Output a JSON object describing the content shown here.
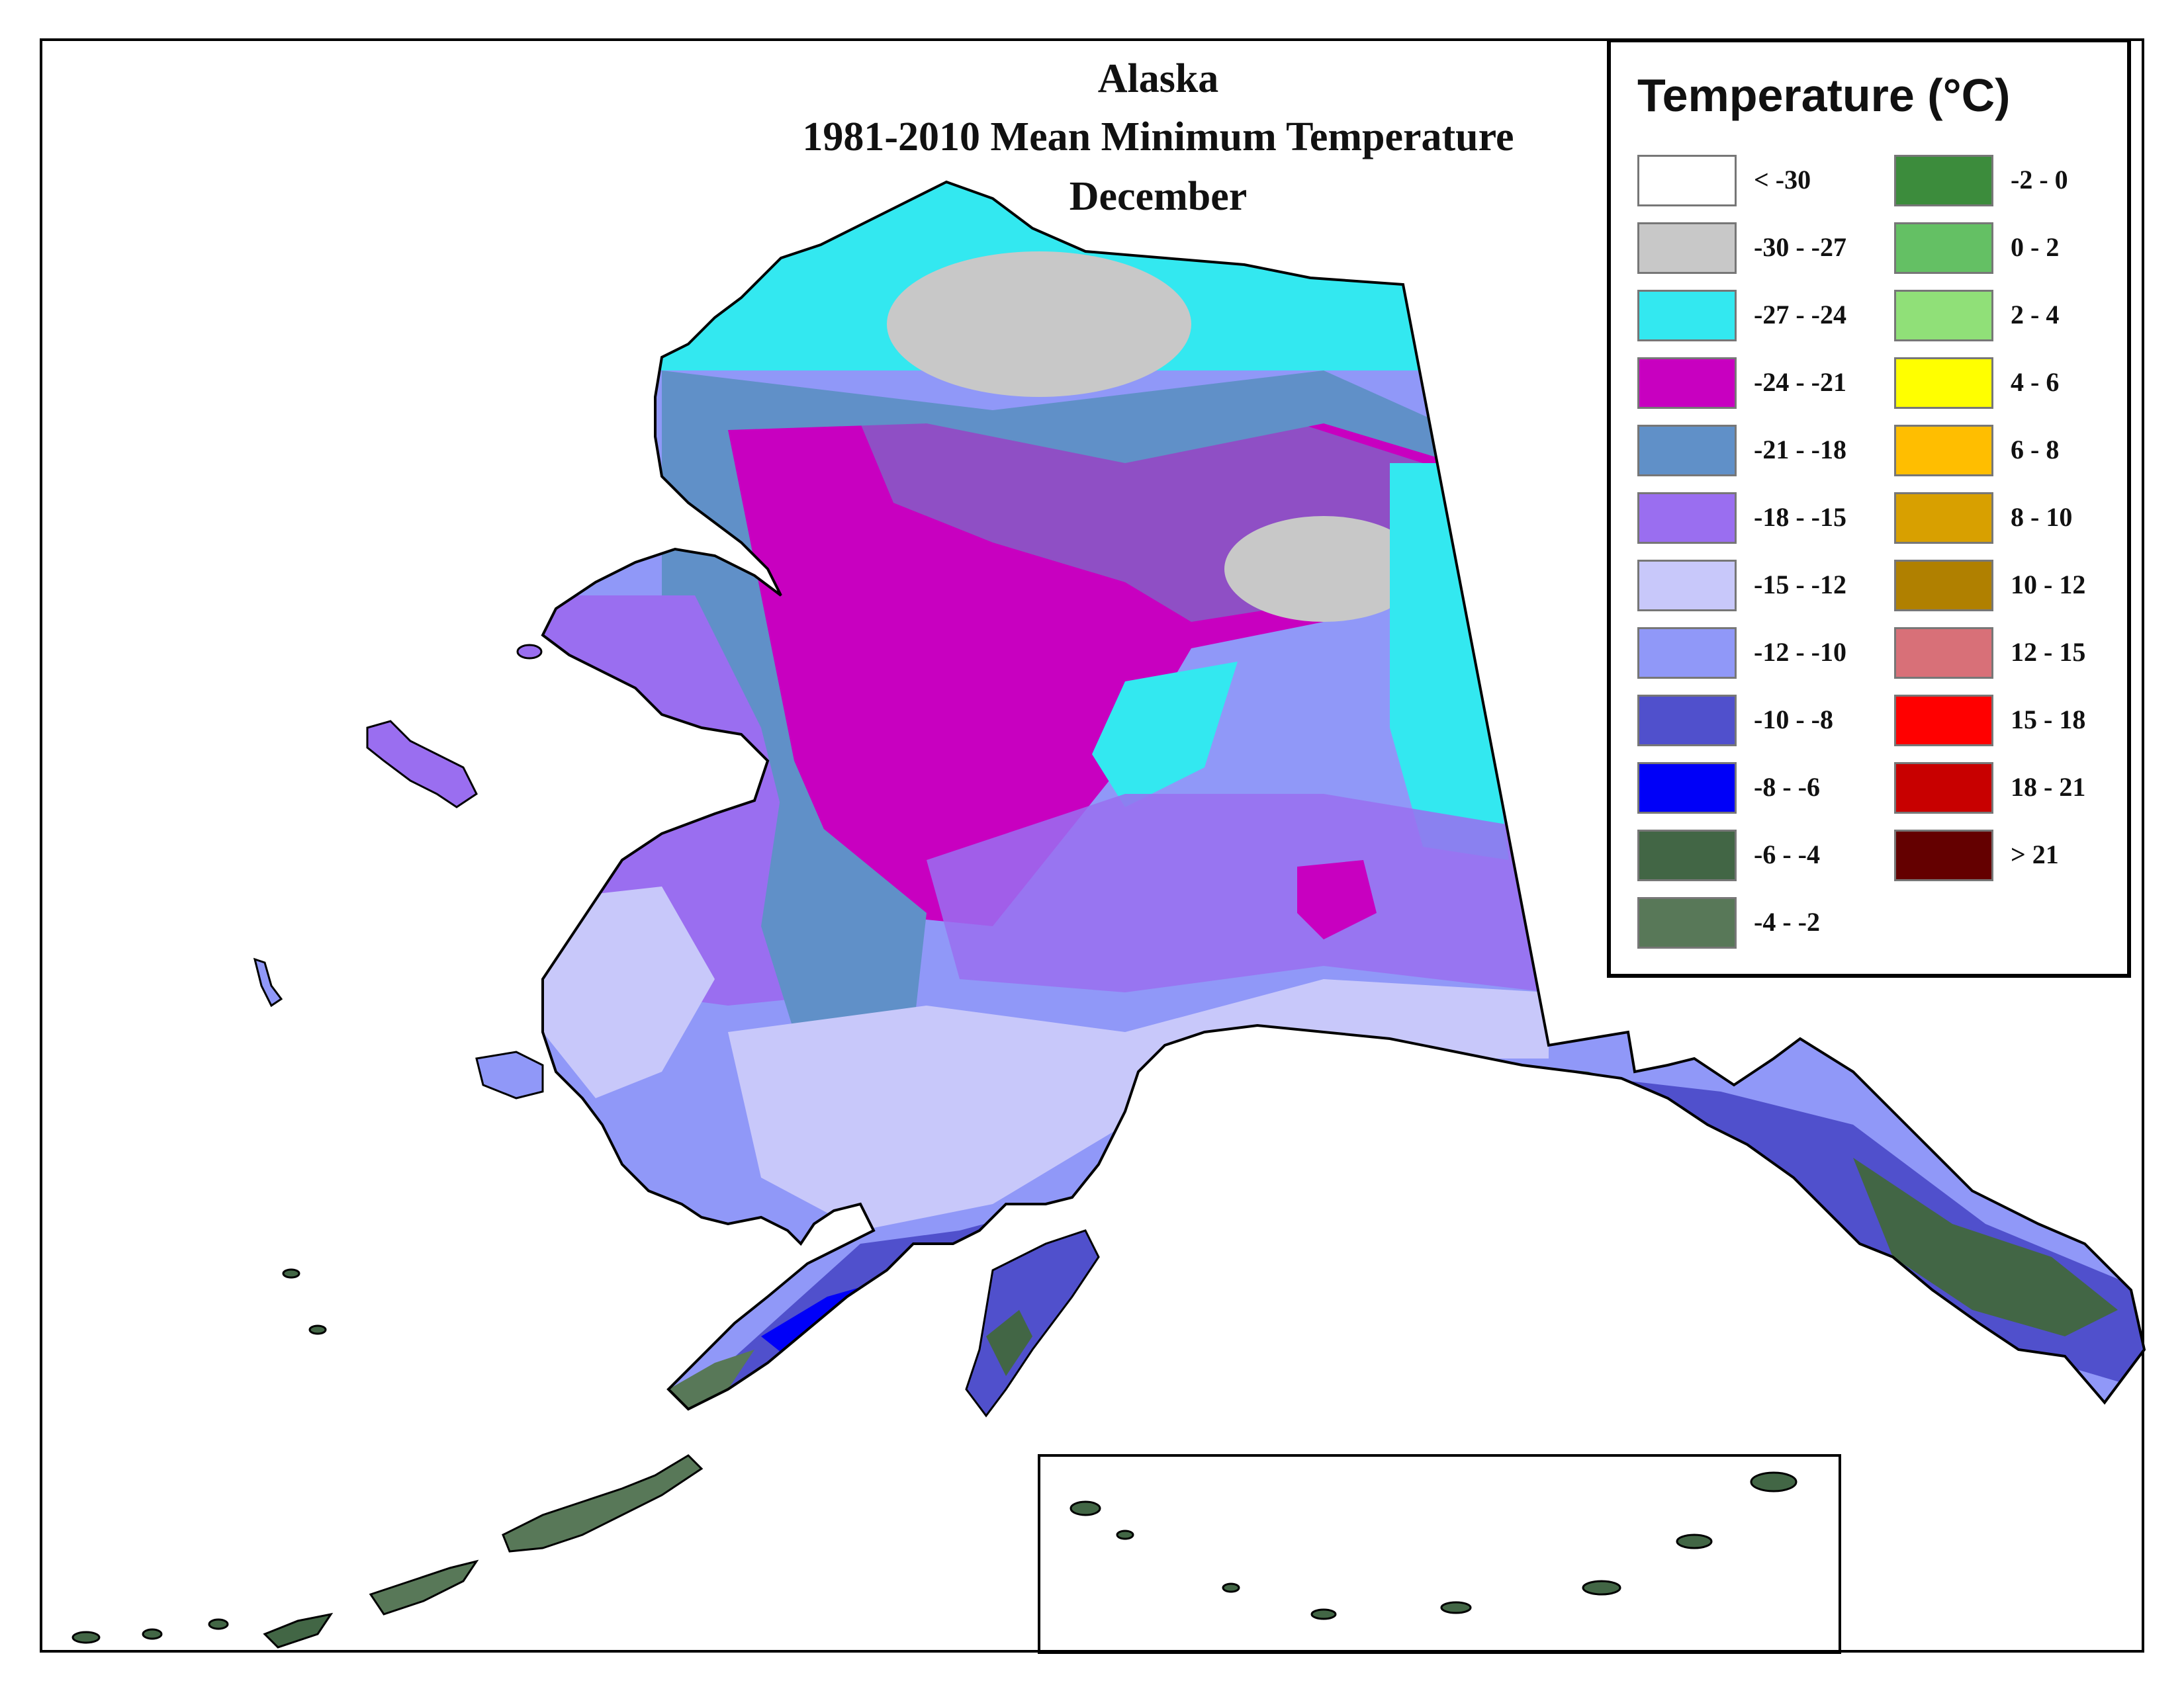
{
  "title": {
    "line1": "Alaska",
    "line2": "1981-2010 Mean Minimum Temperature",
    "line3": "December"
  },
  "legend": {
    "title": "Temperature (°C)",
    "left_items": [
      {
        "label": "< -30",
        "color": "#ffffff"
      },
      {
        "label": "-30 - -27",
        "color": "#c8c8c8"
      },
      {
        "label": "-27 - -24",
        "color": "#33e8f0"
      },
      {
        "label": "-24 - -21",
        "color": "#c800c0"
      },
      {
        "label": "-21 - -18",
        "color": "#6090c8"
      },
      {
        "label": "-18 - -15",
        "color": "#9a6ef0"
      },
      {
        "label": "-15 - -12",
        "color": "#c8c8fa"
      },
      {
        "label": "-12 - -10",
        "color": "#9098f8"
      },
      {
        "label": "-10 - -8",
        "color": "#5050cc"
      },
      {
        "label": "-8 - -6",
        "color": "#0000f8"
      },
      {
        "label": "-6 - -4",
        "color": "#426645"
      },
      {
        "label": "-4 - -2",
        "color": "#587858"
      }
    ],
    "right_items": [
      {
        "label": "-2 - 0",
        "color": "#3c8c3c"
      },
      {
        "label": "0 - 2",
        "color": "#64c064"
      },
      {
        "label": "2 - 4",
        "color": "#90e078"
      },
      {
        "label": "4 - 6",
        "color": "#ffff00"
      },
      {
        "label": "6 - 8",
        "color": "#ffbe00"
      },
      {
        "label": "8 - 10",
        "color": "#d8a000"
      },
      {
        "label": "10 - 12",
        "color": "#b08000"
      },
      {
        "label": "12 - 15",
        "color": "#d87078"
      },
      {
        "label": "15 - 18",
        "color": "#ff0000"
      },
      {
        "label": "18 - 21",
        "color": "#c80000"
      },
      {
        "label": "> 21",
        "color": "#640000"
      }
    ]
  }
}
